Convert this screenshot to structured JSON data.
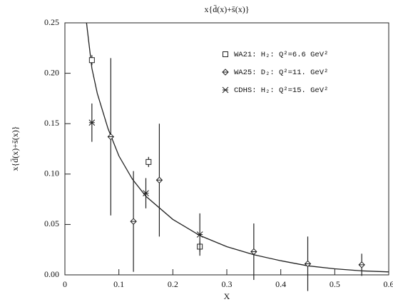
{
  "chart_data": {
    "type": "scatter",
    "title": "x{d̄(x)+s̄(x)}",
    "x_label": "X",
    "y_label": "x{d̄(x)+s̄(x)}",
    "xlim": [
      0,
      0.6
    ],
    "ylim": [
      0,
      0.25
    ],
    "xticks": [
      0,
      0.1,
      0.2,
      0.3,
      0.4,
      0.5,
      0.6
    ],
    "yticks": [
      {
        "value": 0,
        "label": "0.00"
      },
      {
        "value": 0.05,
        "label": "0.05"
      },
      {
        "value": 0.1,
        "label": "0.10"
      },
      {
        "value": 0.15,
        "label": "0.15"
      },
      {
        "value": 0.2,
        "label": "0.20"
      },
      {
        "value": 0.25,
        "label": "0.25"
      }
    ],
    "series": [
      {
        "name": "WA21: H₂: Q²=6.6 GeV²",
        "marker": "square",
        "color": "#222",
        "x": [
          0.05,
          0.155,
          0.25
        ],
        "values": [
          0.213,
          0.112,
          0.028
        ],
        "errors": [
          0.005,
          0.005,
          0.005
        ]
      },
      {
        "name": "WA25: D₂: Q²=11. GeV²",
        "marker": "diamond",
        "color": "#222",
        "x": [
          0.085,
          0.127,
          0.175,
          0.35,
          0.45,
          0.55
        ],
        "values": [
          0.137,
          0.053,
          0.094,
          0.023,
          0.011,
          0.01
        ],
        "errors": [
          0.078,
          0.05,
          0.056,
          0.028,
          0.027,
          0.011
        ]
      },
      {
        "name": "CDHS: H₂: Q²=15. GeV²",
        "marker": "cross",
        "color": "#222",
        "x": [
          0.05,
          0.15,
          0.25
        ],
        "values": [
          0.151,
          0.081,
          0.04
        ],
        "errors": [
          0.019,
          0.015,
          0.021
        ]
      }
    ],
    "curve": {
      "color": "#222",
      "x": [
        0.04,
        0.05,
        0.06,
        0.08,
        0.1,
        0.125,
        0.15,
        0.2,
        0.25,
        0.3,
        0.35,
        0.4,
        0.45,
        0.5,
        0.55,
        0.6
      ],
      "values": [
        0.25,
        0.205,
        0.18,
        0.145,
        0.118,
        0.095,
        0.078,
        0.055,
        0.039,
        0.028,
        0.02,
        0.014,
        0.009,
        0.006,
        0.004,
        0.003
      ]
    }
  }
}
